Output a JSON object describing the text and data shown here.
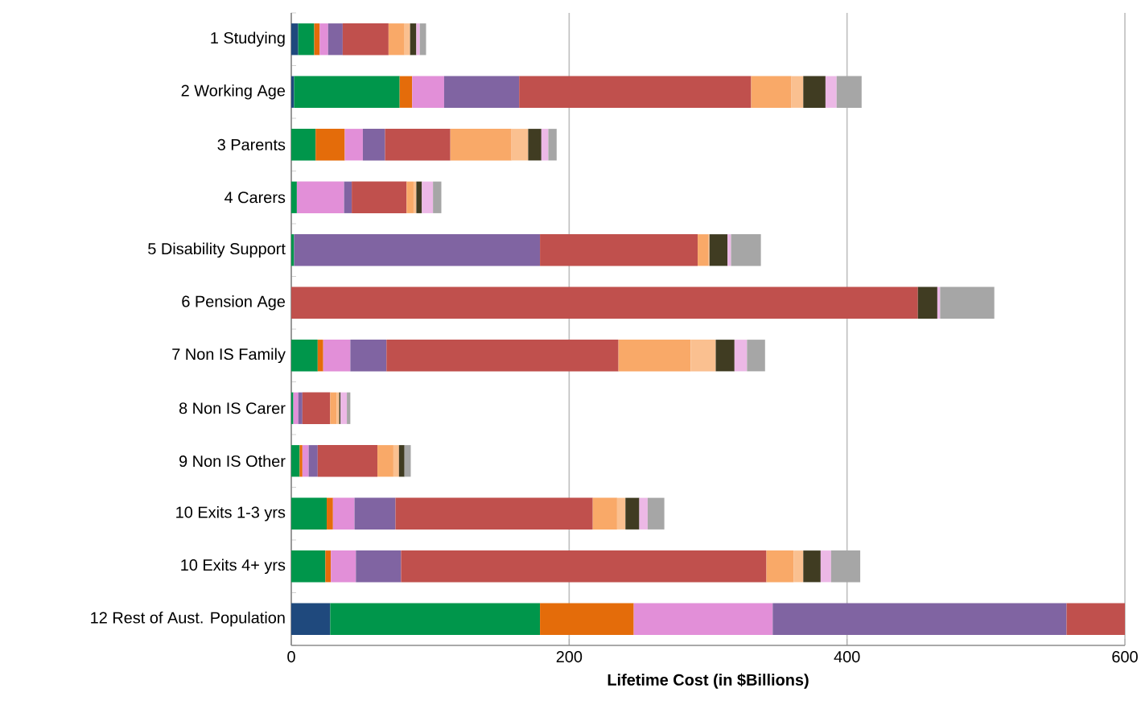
{
  "chart_data": {
    "type": "bar",
    "orientation": "horizontal",
    "stacked": true,
    "xlabel": "Lifetime Cost (in $Billions)",
    "categories": [
      "1 Studying",
      "2 Working Age",
      "3 Parents",
      "4 Carers",
      "5 Disability Support",
      "6 Pension Age",
      "7 Non IS Family",
      "8 Non IS Carer",
      "9 Non IS Other",
      "10 Exits 1-3 yrs",
      "10 Exits 4+ yrs",
      "12 Rest of Aust. Population"
    ],
    "xlim": [
      0,
      600
    ],
    "xticks": [
      0,
      200,
      400,
      600
    ],
    "grid": "x",
    "series": [
      {
        "color": "#1f497d",
        "values": [
          5,
          2,
          0,
          0,
          0,
          0,
          0,
          0,
          0,
          0,
          0,
          28
        ]
      },
      {
        "color": "#00964b",
        "values": [
          11.5,
          76,
          17.5,
          4,
          2,
          0,
          19,
          1.5,
          6,
          25.5,
          24.5,
          151
        ]
      },
      {
        "color": "#e46c0a",
        "values": [
          4,
          9,
          21,
          0,
          0,
          0,
          4,
          0,
          2,
          4.5,
          4,
          67.5
        ]
      },
      {
        "color": "#e28fd8",
        "values": [
          6,
          23,
          13,
          34,
          0,
          0,
          19.5,
          3.5,
          4.5,
          15.5,
          18,
          100
        ]
      },
      {
        "color": "#8064a2",
        "values": [
          10.5,
          54,
          16,
          5.5,
          177,
          null,
          26,
          3,
          6.5,
          29.5,
          32.5,
          211.5
        ]
      },
      {
        "color": "#c0504d",
        "values": [
          33,
          167,
          47,
          39.5,
          113.5,
          451,
          167,
          20,
          43,
          142,
          263,
          42
        ]
      },
      {
        "color": "#f9a968",
        "values": [
          11.5,
          29,
          44,
          5,
          7.5,
          0,
          52,
          4.5,
          11.5,
          17.5,
          19.5,
          0
        ]
      },
      {
        "color": "#fac090",
        "values": [
          4,
          8.5,
          12,
          2,
          1,
          0,
          18,
          2,
          4,
          6,
          7,
          0
        ]
      },
      {
        "color": "#403c22",
        "values": [
          4.5,
          16,
          9.5,
          4,
          13,
          14,
          13.5,
          1,
          4,
          10,
          12.5,
          0
        ]
      },
      {
        "color": "#ecb8e6",
        "values": [
          2.5,
          8,
          5,
          8,
          2.5,
          2,
          9,
          4.5,
          null,
          6,
          7.5,
          0
        ]
      },
      {
        "color": "#a6a6a6",
        "values": [
          4.5,
          18,
          6,
          6,
          21.5,
          39,
          13,
          2.5,
          4.5,
          12,
          21,
          0
        ]
      }
    ]
  }
}
